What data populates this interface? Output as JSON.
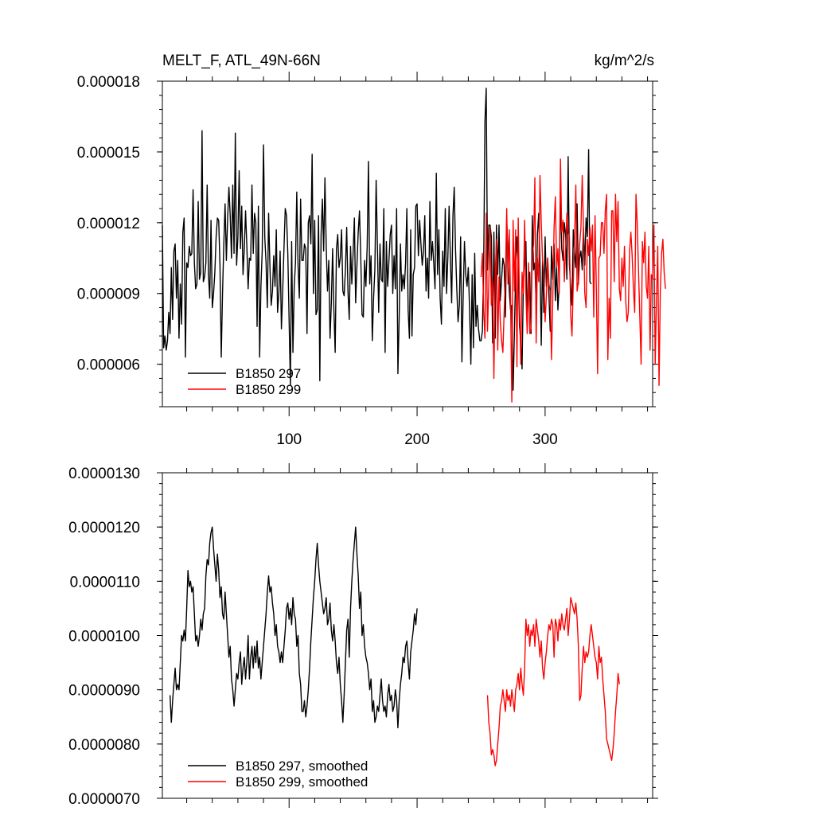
{
  "chart_data": [
    {
      "type": "line",
      "title": "MELT_F, ATL_49N-66N",
      "units": "kg/m^2/s",
      "xlabel": "",
      "ylabel": "",
      "xlim": [
        1,
        384
      ],
      "ylim": [
        4.2e-06,
        1.8e-05
      ],
      "xticks": [
        100,
        200,
        300
      ],
      "xtick_labels": [
        "100",
        "200",
        "300"
      ],
      "yticks": [
        6e-06,
        9e-06,
        1.2e-05,
        1.5e-05,
        1.8e-05
      ],
      "ytick_labels": [
        "0.000006",
        "0.000009",
        "0.000012",
        "0.000015",
        "0.000018"
      ],
      "legend_position": "bottom-left",
      "grid": false,
      "series": [
        {
          "name": "B1850 297",
          "color": "#000000",
          "x_start": 1,
          "values": [
            11.9,
            6.7,
            7.2,
            6.6,
            7.0,
            8.2,
            7.3,
            10.1,
            7.9,
            10.8,
            11.1,
            8.8,
            10.4,
            7.1,
            9.4,
            7.7,
            11.6,
            12.2,
            6.3,
            10.3,
            10.1,
            11.0,
            10.6,
            10.7,
            13.4,
            10.3,
            9.2,
            9.4,
            12.9,
            9.6,
            9.9,
            15.9,
            9.5,
            9.7,
            10.3,
            13.6,
            9.8,
            8.8,
            12.1,
            8.4,
            9.0,
            9.9,
            11.4,
            12.2,
            12.1,
            10.2,
            6.3,
            9.0,
            11.1,
            12.8,
            10.4,
            12.2,
            13.5,
            12.3,
            10.5,
            13.6,
            10.7,
            15.8,
            10.2,
            11.4,
            14.2,
            10.9,
            12.7,
            9.8,
            10.9,
            12.5,
            11.0,
            9.2,
            10.5,
            10.4,
            13.6,
            10.7,
            12.4,
            12.0,
            7.6,
            12.7,
            6.3,
            9.3,
            10.8,
            15.3,
            11.4,
            10.3,
            8.4,
            12.4,
            10.2,
            8.5,
            9.1,
            10.6,
            9.3,
            11.7,
            8.2,
            9.0,
            10.8,
            7.5,
            9.1,
            10.9,
            12.6,
            12.3,
            10.7,
            7.9,
            5.1,
            11.2,
            6.5,
            9.3,
            10.3,
            13.3,
            10.2,
            8.8,
            13.0,
            10.4,
            10.4,
            11.1,
            10.9,
            7.3,
            12.0,
            12.3,
            11.1,
            14.9,
            9.0,
            12.1,
            8.1,
            8.3,
            12.3,
            5.3,
            11.5,
            13.0,
            10.8,
            13.9,
            11.0,
            9.1,
            10.4,
            7.1,
            8.6,
            10.9,
            8.3,
            6.5,
            10.9,
            11.5,
            10.1,
            10.5,
            11.7,
            9.1,
            8.9,
            10.0,
            11.8,
            9.1,
            7.9,
            11.0,
            9.4,
            10.7,
            12.2,
            8.6,
            10.2,
            11.6,
            12.5,
            10.5,
            8.1,
            8.0,
            10.4,
            9.3,
            11.0,
            14.6,
            9.4,
            10.6,
            7.0,
            8.8,
            10.0,
            13.8,
            11.0,
            8.2,
            11.1,
            9.6,
            9.5,
            12.6,
            6.5,
            11.2,
            9.3,
            10.4,
            11.5,
            11.9,
            9.0,
            10.6,
            9.2,
            12.6,
            5.6,
            8.0,
            11.1,
            9.1,
            9.8,
            9.2,
            10.3,
            12.6,
            8.3,
            7.1,
            11.7,
            7.2,
            9.8,
            10.1,
            12.7,
            12.8,
            10.6,
            12.1,
            11.1,
            10.2,
            10.8,
            12.3,
            9.1,
            10.5,
            8.8,
            12.9,
            10.4,
            11.2,
            10.3,
            9.2,
            14.1,
            9.8,
            11.7,
            8.8,
            7.7,
            10.8,
            9.3,
            12.6,
            9.0,
            10.5,
            12.7,
            10.5,
            8.6,
            12.3,
            13.5,
            10.9,
            9.2,
            7.8,
            8.5,
            11.4,
            6.1,
            8.9,
            11.2,
            9.8,
            9.3,
            10.1,
            8.3,
            6.0,
            9.8,
            6.7,
            10.7,
            7.6,
            8.5,
            7.5,
            7.0,
            7.0,
            7.4,
            10.1,
            16.3,
            17.7,
            10.0,
            11.9,
            11.9,
            11.4,
            6.9,
            11.6,
            7.1,
            11.9,
            9.8,
            11.9,
            8.7,
            9.6,
            10.5,
            10.2,
            8.0,
            12.1,
            10.8,
            9.1,
            8.3,
            8.5,
            4.9,
            7.3,
            10.0,
            11.4,
            10.2,
            7.6,
            7.0,
            5.8,
            9.5,
            10.5,
            11.2,
            7.6,
            9.7,
            9.9,
            7.3,
            12.3,
            10.0,
            10.3,
            8.5,
            11.5,
            12.4,
            10.3,
            6.8,
            10.4,
            8.2,
            11.4,
            9.3,
            10.5,
            8.9,
            7.4,
            11.0,
            9.6,
            11.1,
            8.7,
            10.1,
            8.3,
            9.4,
            13.2,
            10.9,
            10.4,
            12.0,
            11.5,
            9.6,
            14.8,
            10.2,
            9.3,
            8.5,
            11.7,
            10.7,
            10.1,
            12.8,
            9.4,
            10.5,
            10.8,
            10.0,
            11.8,
            10.2,
            12.2,
            11.4,
            15.1,
            9.5,
            9.4
          ]
        },
        {
          "name": "B1850 299",
          "color": "#ff0000",
          "x_start": 250,
          "values": [
            9.7,
            10.7,
            8.3,
            7.1,
            12.4,
            7.4,
            9.4,
            11.8,
            8.5,
            9.6,
            5.4,
            9.8,
            11.3,
            6.6,
            9.7,
            7.8,
            7.0,
            6.5,
            8.2,
            9.7,
            12.6,
            9.4,
            11.7,
            8.8,
            4.4,
            12.1,
            9.1,
            11.7,
            5.9,
            12.2,
            8.5,
            6.0,
            9.9,
            9.0,
            12.1,
            9.0,
            7.3,
            10.3,
            7.3,
            7.5,
            10.6,
            11.1,
            13.9,
            6.9,
            10.5,
            9.5,
            14.0,
            12.0,
            10.4,
            9.8,
            7.8,
            8.9,
            10.5,
            9.4,
            9.1,
            6.2,
            8.8,
            11.8,
            13.1,
            10.1,
            10.9,
            9.0,
            14.7,
            11.6,
            12.1,
            9.5,
            10.8,
            12.4,
            11.6,
            11.4,
            8.1,
            7.2,
            9.4,
            11.2,
            13.6,
            9.1,
            9.5,
            11.1,
            11.8,
            14.0,
            11.7,
            9.0,
            8.4,
            11.3,
            10.6,
            11.8,
            10.8,
            11.9,
            8.0,
            12.3,
            9.3,
            5.6,
            10.5,
            10.6,
            12.0,
            12.0,
            10.7,
            12.5,
            13.2,
            6.2,
            8.8,
            7.1,
            12.5,
            12.5,
            9.5,
            13.2,
            11.2,
            12.9,
            9.2,
            8.7,
            10.5,
            9.3,
            11.0,
            8.7,
            7.8,
            8.2,
            10.8,
            11.6,
            10.6,
            9.2,
            8.2,
            13.2,
            11.9,
            9.9,
            8.0,
            6.0,
            11.2,
            10.3,
            11.6,
            9.3,
            8.8,
            11.0,
            6.6,
            9.8,
            9.6,
            11.9,
            6.0,
            8.7,
            11.0,
            5.1,
            9.1,
            10.7,
            11.3,
            9.9,
            9.2
          ]
        }
      ],
      "legend": [
        "B1850 297",
        "B1850 299"
      ]
    },
    {
      "type": "line",
      "title": "",
      "xlabel": "",
      "ylabel": "",
      "xlim": [
        1,
        384
      ],
      "ylim": [
        7e-06,
        1.3e-05
      ],
      "xticks": [
        100,
        200,
        300
      ],
      "yticks": [
        7e-06,
        8e-06,
        9e-06,
        1e-05,
        1.1e-05,
        1.2e-05,
        1.3e-05
      ],
      "ytick_labels": [
        "0.0000070",
        "0.0000080",
        "0.0000090",
        "0.0000100",
        "0.0000110",
        "0.0000120",
        "0.0000130"
      ],
      "legend_position": "bottom-left",
      "grid": false,
      "series": [
        {
          "name": "B1850 297, smoothed",
          "color": "#000000",
          "x_start": 7,
          "values": [
            8.9,
            8.4,
            8.8,
            9.1,
            9.4,
            9.0,
            9.1,
            9.0,
            9.5,
            10.0,
            9.9,
            10.1,
            9.9,
            10.5,
            11.2,
            10.9,
            11.0,
            10.8,
            10.9,
            10.4,
            9.9,
            10.0,
            9.8,
            10.0,
            10.3,
            10.1,
            10.4,
            10.5,
            11.1,
            11.4,
            11.3,
            11.7,
            11.9,
            12.0,
            11.6,
            11.3,
            11.0,
            11.5,
            11.2,
            10.7,
            10.9,
            10.4,
            10.3,
            10.8,
            10.4,
            10.0,
            9.6,
            9.8,
            9.2,
            9.0,
            8.7,
            9.0,
            9.3,
            9.2,
            9.5,
            9.7,
            9.1,
            9.4,
            9.6,
            9.2,
            9.5,
            10.0,
            9.2,
            9.6,
            9.8,
            9.4,
            9.8,
            9.5,
            9.9,
            9.4,
            9.6,
            9.2,
            9.5,
            9.8,
            10.1,
            10.4,
            10.8,
            11.1,
            10.8,
            10.9,
            10.6,
            10.4,
            10.0,
            10.2,
            9.8,
            9.7,
            9.5,
            9.7,
            9.5,
            9.8,
            10.1,
            10.5,
            10.6,
            10.3,
            10.5,
            10.2,
            10.7,
            10.4,
            10.3,
            9.8,
            10.0,
            9.3,
            9.1,
            8.6,
            8.6,
            8.8,
            8.5,
            8.7,
            9.0,
            9.4,
            9.9,
            10.3,
            10.7,
            11.0,
            11.4,
            11.7,
            11.3,
            11.0,
            10.8,
            10.6,
            10.4,
            10.5,
            10.7,
            10.2,
            10.3,
            10.6,
            10.1,
            9.9,
            10.2,
            9.9,
            9.5,
            9.3,
            9.6,
            9.1,
            8.8,
            8.4,
            8.9,
            9.5,
            10.1,
            10.3,
            9.6,
            10.5,
            11.0,
            11.4,
            11.7,
            12.0,
            11.5,
            11.1,
            10.5,
            10.8,
            10.0,
            10.2,
            9.8,
            9.6,
            9.5,
            9.3,
            9.0,
            9.2,
            8.6,
            8.8,
            8.4,
            8.5,
            8.7,
            8.6,
            8.9,
            9.2,
            8.8,
            8.6,
            8.7,
            8.5,
            8.9,
            9.1,
            8.8,
            8.9,
            8.6,
            8.7,
            9.0,
            8.8,
            8.3,
            8.8,
            9.1,
            9.3,
            9.6,
            9.5,
            9.8,
            9.9,
            9.5,
            9.2,
            9.7,
            9.9,
            10.1,
            10.4,
            10.2,
            10.5
          ]
        },
        {
          "name": "B1850 299, smoothed",
          "color": "#ff0000",
          "x_start": 255,
          "values": [
            8.9,
            8.4,
            8.2,
            7.8,
            7.9,
            7.8,
            7.6,
            7.7,
            8.0,
            8.3,
            8.7,
            8.8,
            9.0,
            8.8,
            8.6,
            9.0,
            8.8,
            8.9,
            8.7,
            9.0,
            8.8,
            8.6,
            9.0,
            9.1,
            9.3,
            9.0,
            9.4,
            9.1,
            8.9,
            9.4,
            10.3,
            10.0,
            10.2,
            9.8,
            10.1,
            10.0,
            10.2,
            9.8,
            10.3,
            10.1,
            9.9,
            9.6,
            9.9,
            9.4,
            9.2,
            9.5,
            9.7,
            10.0,
            10.2,
            10.1,
            10.3,
            10.2,
            9.6,
            10.3,
            10.2,
            9.9,
            10.3,
            10.1,
            10.4,
            10.2,
            10.1,
            10.3,
            10.5,
            10.0,
            10.3,
            10.7,
            10.6,
            10.5,
            10.4,
            10.6,
            10.3,
            9.8,
            8.8,
            8.9,
            9.4,
            9.8,
            9.5,
            9.7,
            9.6,
            9.7,
            10.0,
            10.2,
            10.0,
            9.8,
            9.6,
            9.5,
            9.2,
            9.8,
            9.5,
            9.6,
            9.2,
            8.9,
            8.6,
            8.1,
            8.0,
            7.9,
            7.8,
            7.7,
            7.9,
            8.2,
            8.6,
            8.9,
            9.3,
            9.1
          ]
        }
      ],
      "legend": [
        "B1850 297, smoothed",
        "B1850 299, smoothed"
      ]
    }
  ]
}
